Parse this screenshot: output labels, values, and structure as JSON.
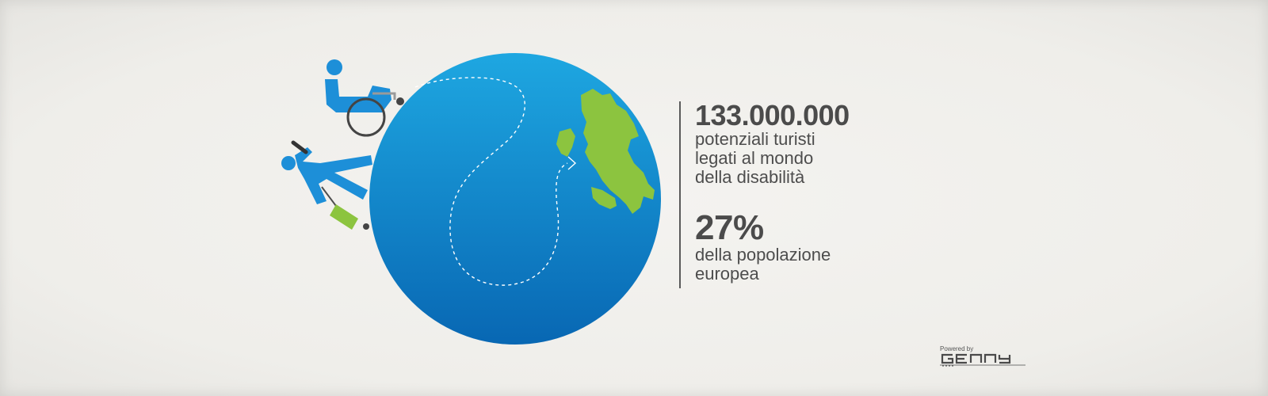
{
  "stats": {
    "visitors_number": "133.000.000",
    "visitors_desc": [
      "potenziali turisti",
      "legati al mondo",
      "della disabilità"
    ],
    "percent": "27%",
    "percent_desc": [
      "della popolazione",
      "europea"
    ]
  },
  "branding": {
    "powered_by": "Powered by",
    "logo_text": "GENNY"
  },
  "colors": {
    "globe_light": "#1da4df",
    "globe_dark": "#0a6db8",
    "land": "#8cc43f",
    "figure_blue": "#1d8fd8",
    "text": "#4b4b4b"
  },
  "icons": [
    "wheelchair-user-icon",
    "walking-traveler-icon",
    "suitcase-icon",
    "italy-map-icon",
    "dashed-route-icon"
  ]
}
